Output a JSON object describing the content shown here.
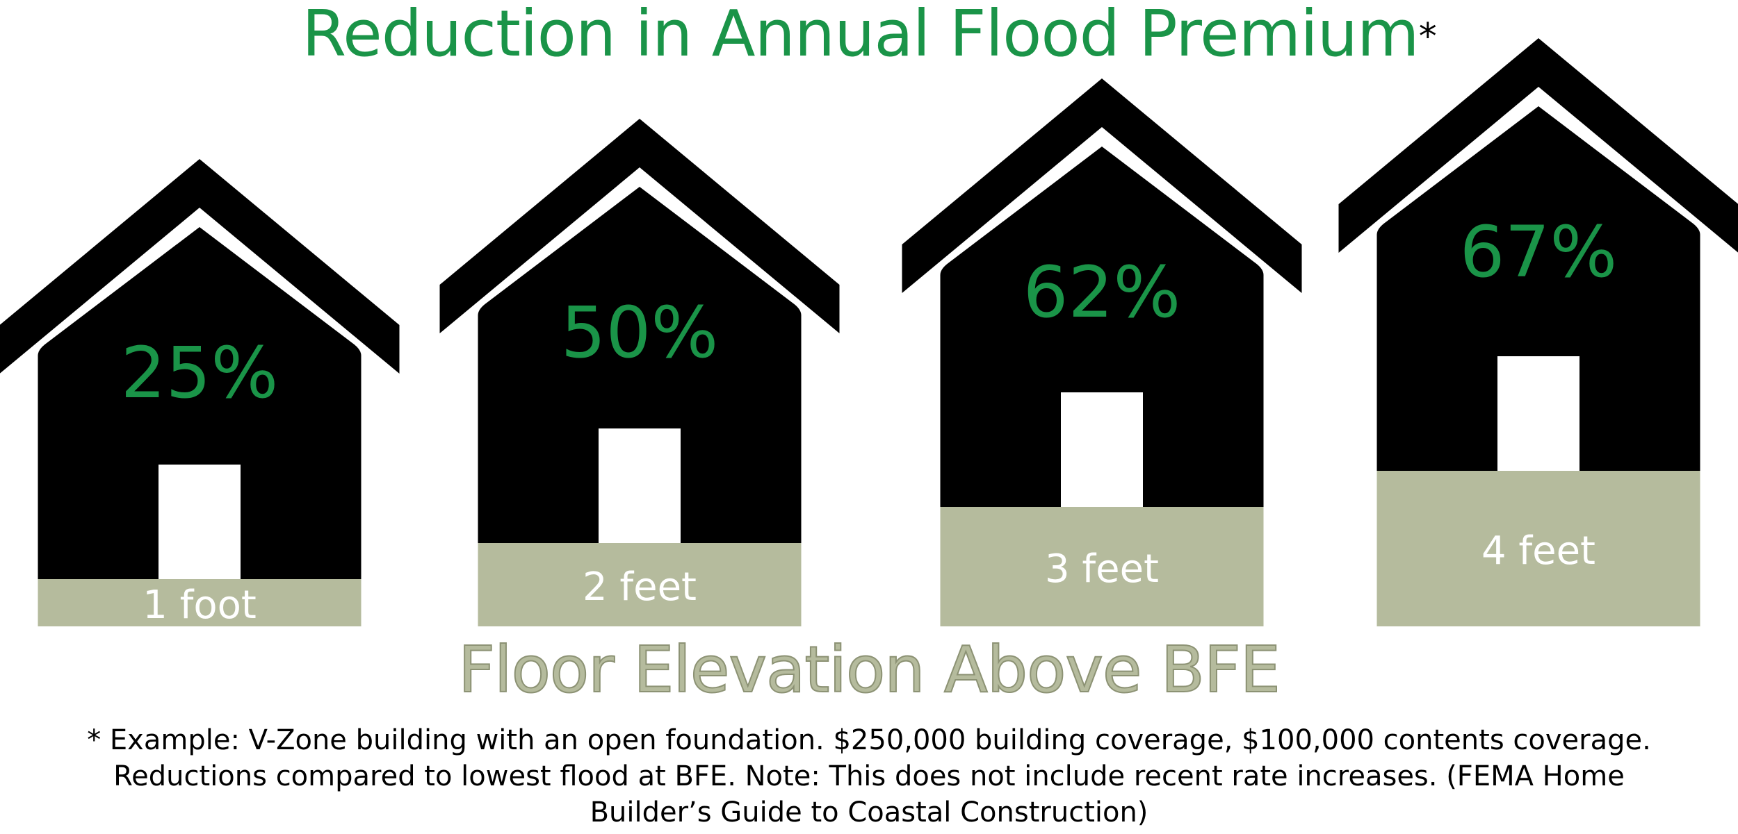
{
  "chart_data": {
    "type": "bar",
    "title": "Reduction in Annual Flood Premium",
    "title_marker": "*",
    "xlabel": "Floor Elevation Above BFE",
    "categories": [
      "1 foot",
      "2 feet",
      "3 feet",
      "4 feet"
    ],
    "values": [
      25,
      50,
      62,
      67
    ],
    "value_labels": [
      "25%",
      "50%",
      "62%",
      "67%"
    ],
    "unit": "%"
  },
  "footnote": "* Example: V-Zone building with an open foundation. $250,000 building coverage, $100,000 contents coverage. Reductions compared to lowest flood at BFE. Note: This does not include recent rate increases. (FEMA Home Builder’s Guide to Coastal Construction)",
  "colors": {
    "title": "#1a9448",
    "percent": "#1a9448",
    "house": "#000000",
    "elevation": "#b5bb9d",
    "elevation_text": "#ffffff",
    "axis_label": "#b5bb9d"
  }
}
